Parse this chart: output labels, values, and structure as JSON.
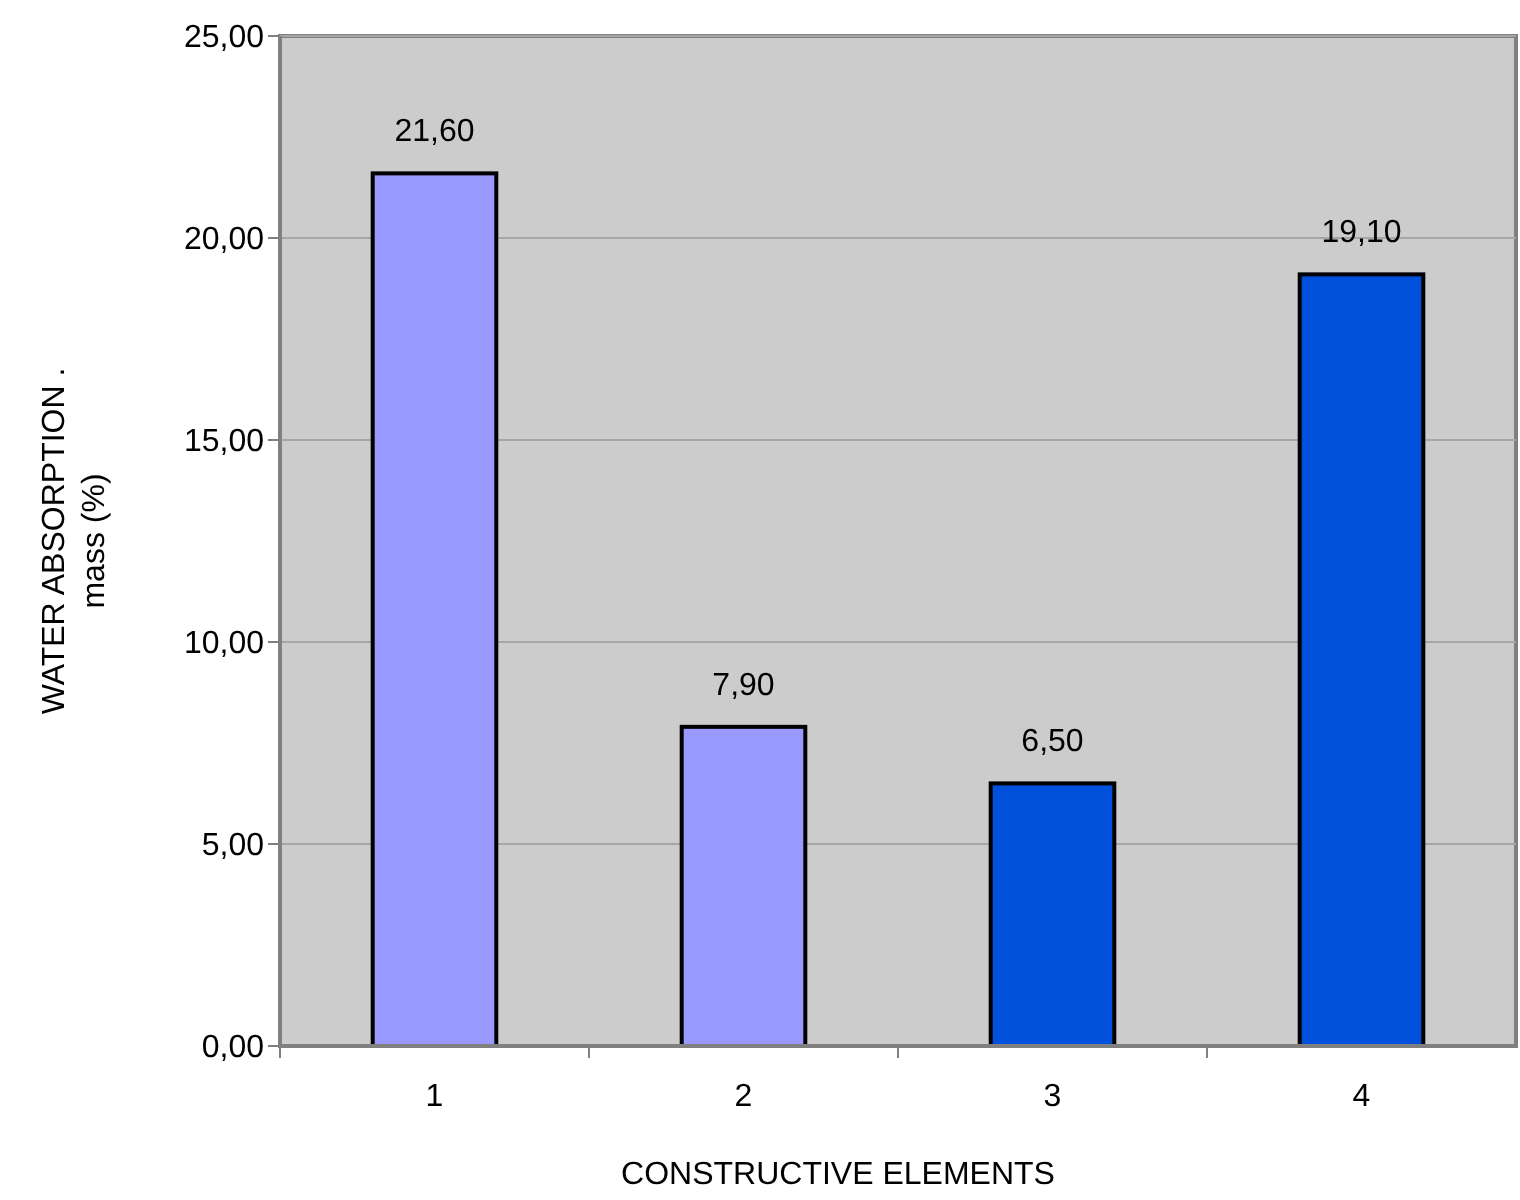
{
  "chart_data": {
    "type": "bar",
    "xlabel": "CONSTRUCTIVE ELEMENTS",
    "ylabel": "WATER ABSORPTION .\nmass (%)",
    "categories": [
      "1",
      "2",
      "3",
      "4"
    ],
    "values": [
      21.6,
      7.9,
      6.5,
      19.1
    ],
    "colors": [
      "#9999ff",
      "#9999ff",
      "#0050dc",
      "#0050dc"
    ],
    "value_labels": [
      "21,60",
      "7,90",
      "6,50",
      "19,10"
    ],
    "ylim": [
      0,
      25
    ],
    "yticks": [
      {
        "value": 0,
        "label": "0,00"
      },
      {
        "value": 5,
        "label": "5,00"
      },
      {
        "value": 10,
        "label": "10,00"
      },
      {
        "value": 15,
        "label": "15,00"
      },
      {
        "value": 20,
        "label": "20,00"
      },
      {
        "value": 25,
        "label": "25,00"
      }
    ],
    "grid": "y"
  }
}
